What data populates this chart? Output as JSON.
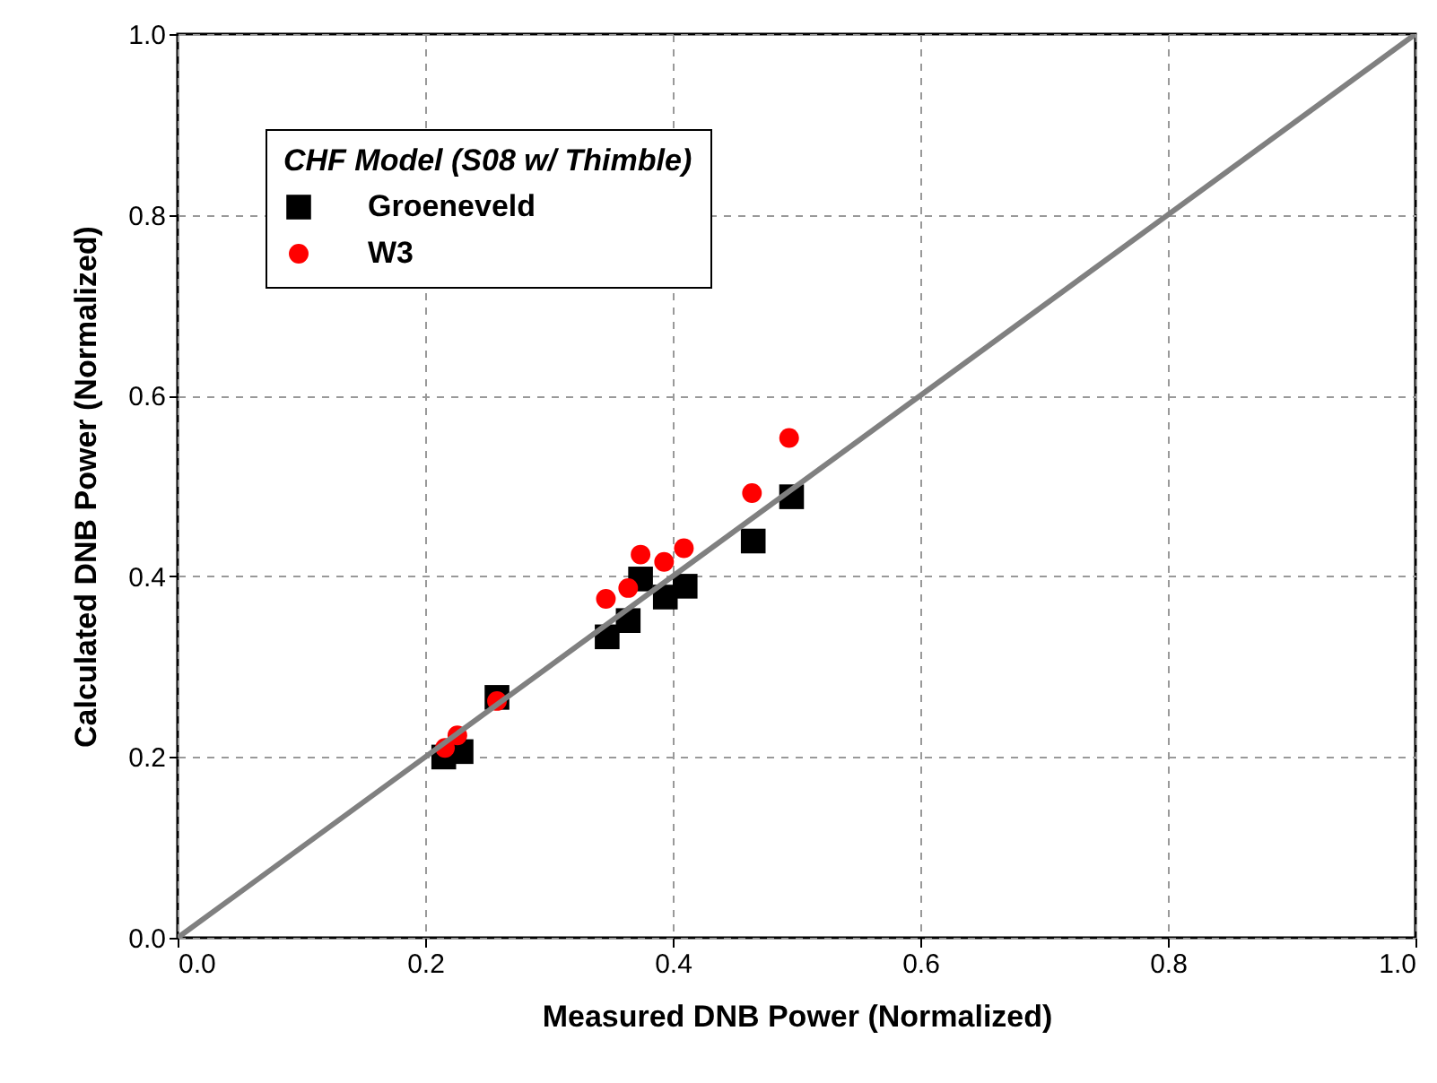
{
  "chart_data": {
    "type": "scatter",
    "xlabel": "Measured DNB Power (Normalized)",
    "ylabel": "Calculated DNB Power (Normalized)",
    "legend_title": "CHF Model (S08 w/ Thimble)",
    "xlim": [
      0,
      1
    ],
    "ylim": [
      0,
      1
    ],
    "xticks": [
      {
        "value": 0,
        "label": "0.0"
      },
      {
        "value": 0.2,
        "label": "0.2"
      },
      {
        "value": 0.4,
        "label": "0.4"
      },
      {
        "value": 0.6,
        "label": "0.6"
      },
      {
        "value": 0.8,
        "label": "0.8"
      },
      {
        "value": 1,
        "label": "1.0"
      }
    ],
    "yticks": [
      {
        "value": 0,
        "label": "0.0"
      },
      {
        "value": 0.2,
        "label": "0.2"
      },
      {
        "value": 0.4,
        "label": "0.4"
      },
      {
        "value": 0.6,
        "label": "0.6"
      },
      {
        "value": 0.8,
        "label": "0.8"
      },
      {
        "value": 1,
        "label": "1.0"
      }
    ],
    "grid": true,
    "legend": "top left",
    "series": [
      {
        "name": "Groeneveld",
        "color": "#000000",
        "marker": "square",
        "x": [
          0.215,
          0.229,
          0.258,
          0.347,
          0.364,
          0.374,
          0.394,
          0.41,
          0.465,
          0.496
        ],
        "values": [
          0.2,
          0.206,
          0.266,
          0.333,
          0.351,
          0.397,
          0.377,
          0.389,
          0.439,
          0.488
        ]
      },
      {
        "name": "W3",
        "color": "#ff0000",
        "marker": "circle",
        "x": [
          0.216,
          0.226,
          0.258,
          0.346,
          0.364,
          0.374,
          0.393,
          0.409,
          0.464,
          0.494
        ],
        "values": [
          0.21,
          0.224,
          0.262,
          0.375,
          0.387,
          0.424,
          0.416,
          0.431,
          0.492,
          0.553
        ]
      },
      {
        "type": "line",
        "color": "#808080",
        "x": [
          0,
          1
        ],
        "values": [
          0,
          1
        ]
      }
    ]
  }
}
